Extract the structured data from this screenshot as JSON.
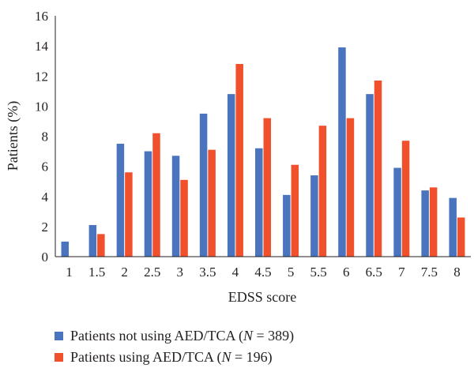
{
  "chart_data": {
    "type": "bar",
    "xlabel": "EDSS score",
    "ylabel": "Patients (%)",
    "ylim": [
      0,
      16
    ],
    "yticks": [
      "0",
      "2",
      "4",
      "6",
      "8",
      "10",
      "12",
      "14",
      "16"
    ],
    "categories": [
      "1",
      "1.5",
      "2",
      "2.5",
      "3",
      "3.5",
      "4",
      "4.5",
      "5",
      "5.5",
      "6",
      "6.5",
      "7",
      "7.5",
      "8"
    ],
    "grid": false,
    "legend_position": "bottom",
    "series": [
      {
        "name_prefix": "Patients not using AED/TCA (",
        "name_italic": "N",
        "name_suffix": " = 389)",
        "color": "#4a75be",
        "values": [
          1.0,
          2.1,
          7.5,
          7.0,
          6.7,
          9.5,
          10.8,
          7.2,
          4.1,
          5.4,
          13.9,
          10.8,
          5.9,
          4.4,
          3.9
        ]
      },
      {
        "name_prefix": "Patients using AED/TCA (",
        "name_italic": "N",
        "name_suffix": " = 196)",
        "color": "#f1502d",
        "values": [
          0,
          1.5,
          5.6,
          8.2,
          5.1,
          7.1,
          12.8,
          9.2,
          6.1,
          8.7,
          9.2,
          11.7,
          7.7,
          4.6,
          2.6
        ]
      }
    ]
  }
}
